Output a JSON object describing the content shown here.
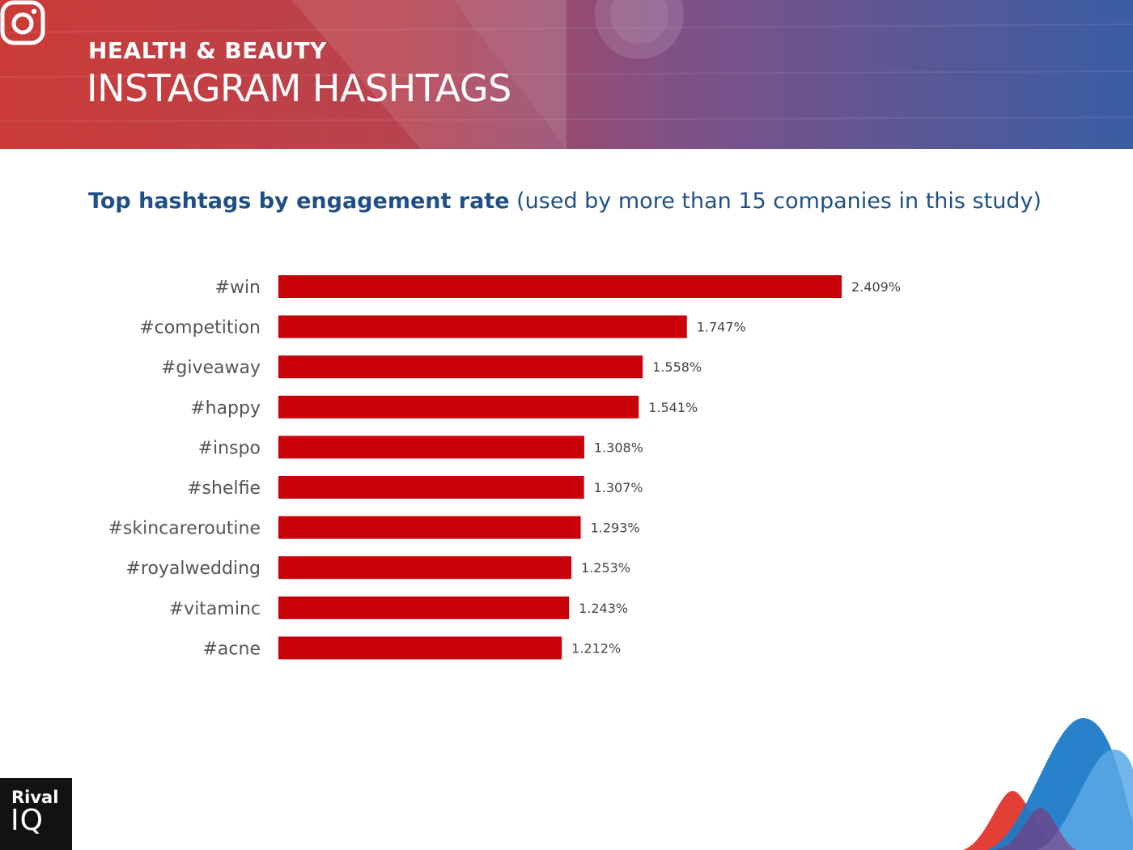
{
  "header": {
    "category": "HEALTH & BEAUTY",
    "title": "INSTAGRAM HASHTAGS",
    "icon": "instagram-icon"
  },
  "subtitle": {
    "bold": "Top hashtags by engagement rate",
    "rest": " (used by more than 15 companies in this study)"
  },
  "colors": {
    "bar": "#c8000a",
    "subtitle": "#1f4f86",
    "category_label": "#555555",
    "value_label": "#444444"
  },
  "chart_data": {
    "type": "bar",
    "orientation": "horizontal",
    "title": "Top hashtags by engagement rate (used by more than 15 companies in this study)",
    "categories": [
      "#win",
      "#competition",
      "#giveaway",
      "#happy",
      "#inspo",
      "#shelfie",
      "#skincareroutine",
      "#royalwedding",
      "#vitaminc",
      "#acne"
    ],
    "values": [
      2.409,
      1.747,
      1.558,
      1.541,
      1.308,
      1.307,
      1.293,
      1.253,
      1.243,
      1.212
    ],
    "value_labels": [
      "2.409%",
      "1.747%",
      "1.558%",
      "1.541%",
      "1.308%",
      "1.307%",
      "1.293%",
      "1.253%",
      "1.243%",
      "1.212%"
    ],
    "xlim": [
      0,
      2.409
    ],
    "grid": false,
    "legend": "none"
  },
  "logo": {
    "top": "Rival",
    "bottom": "IQ"
  }
}
